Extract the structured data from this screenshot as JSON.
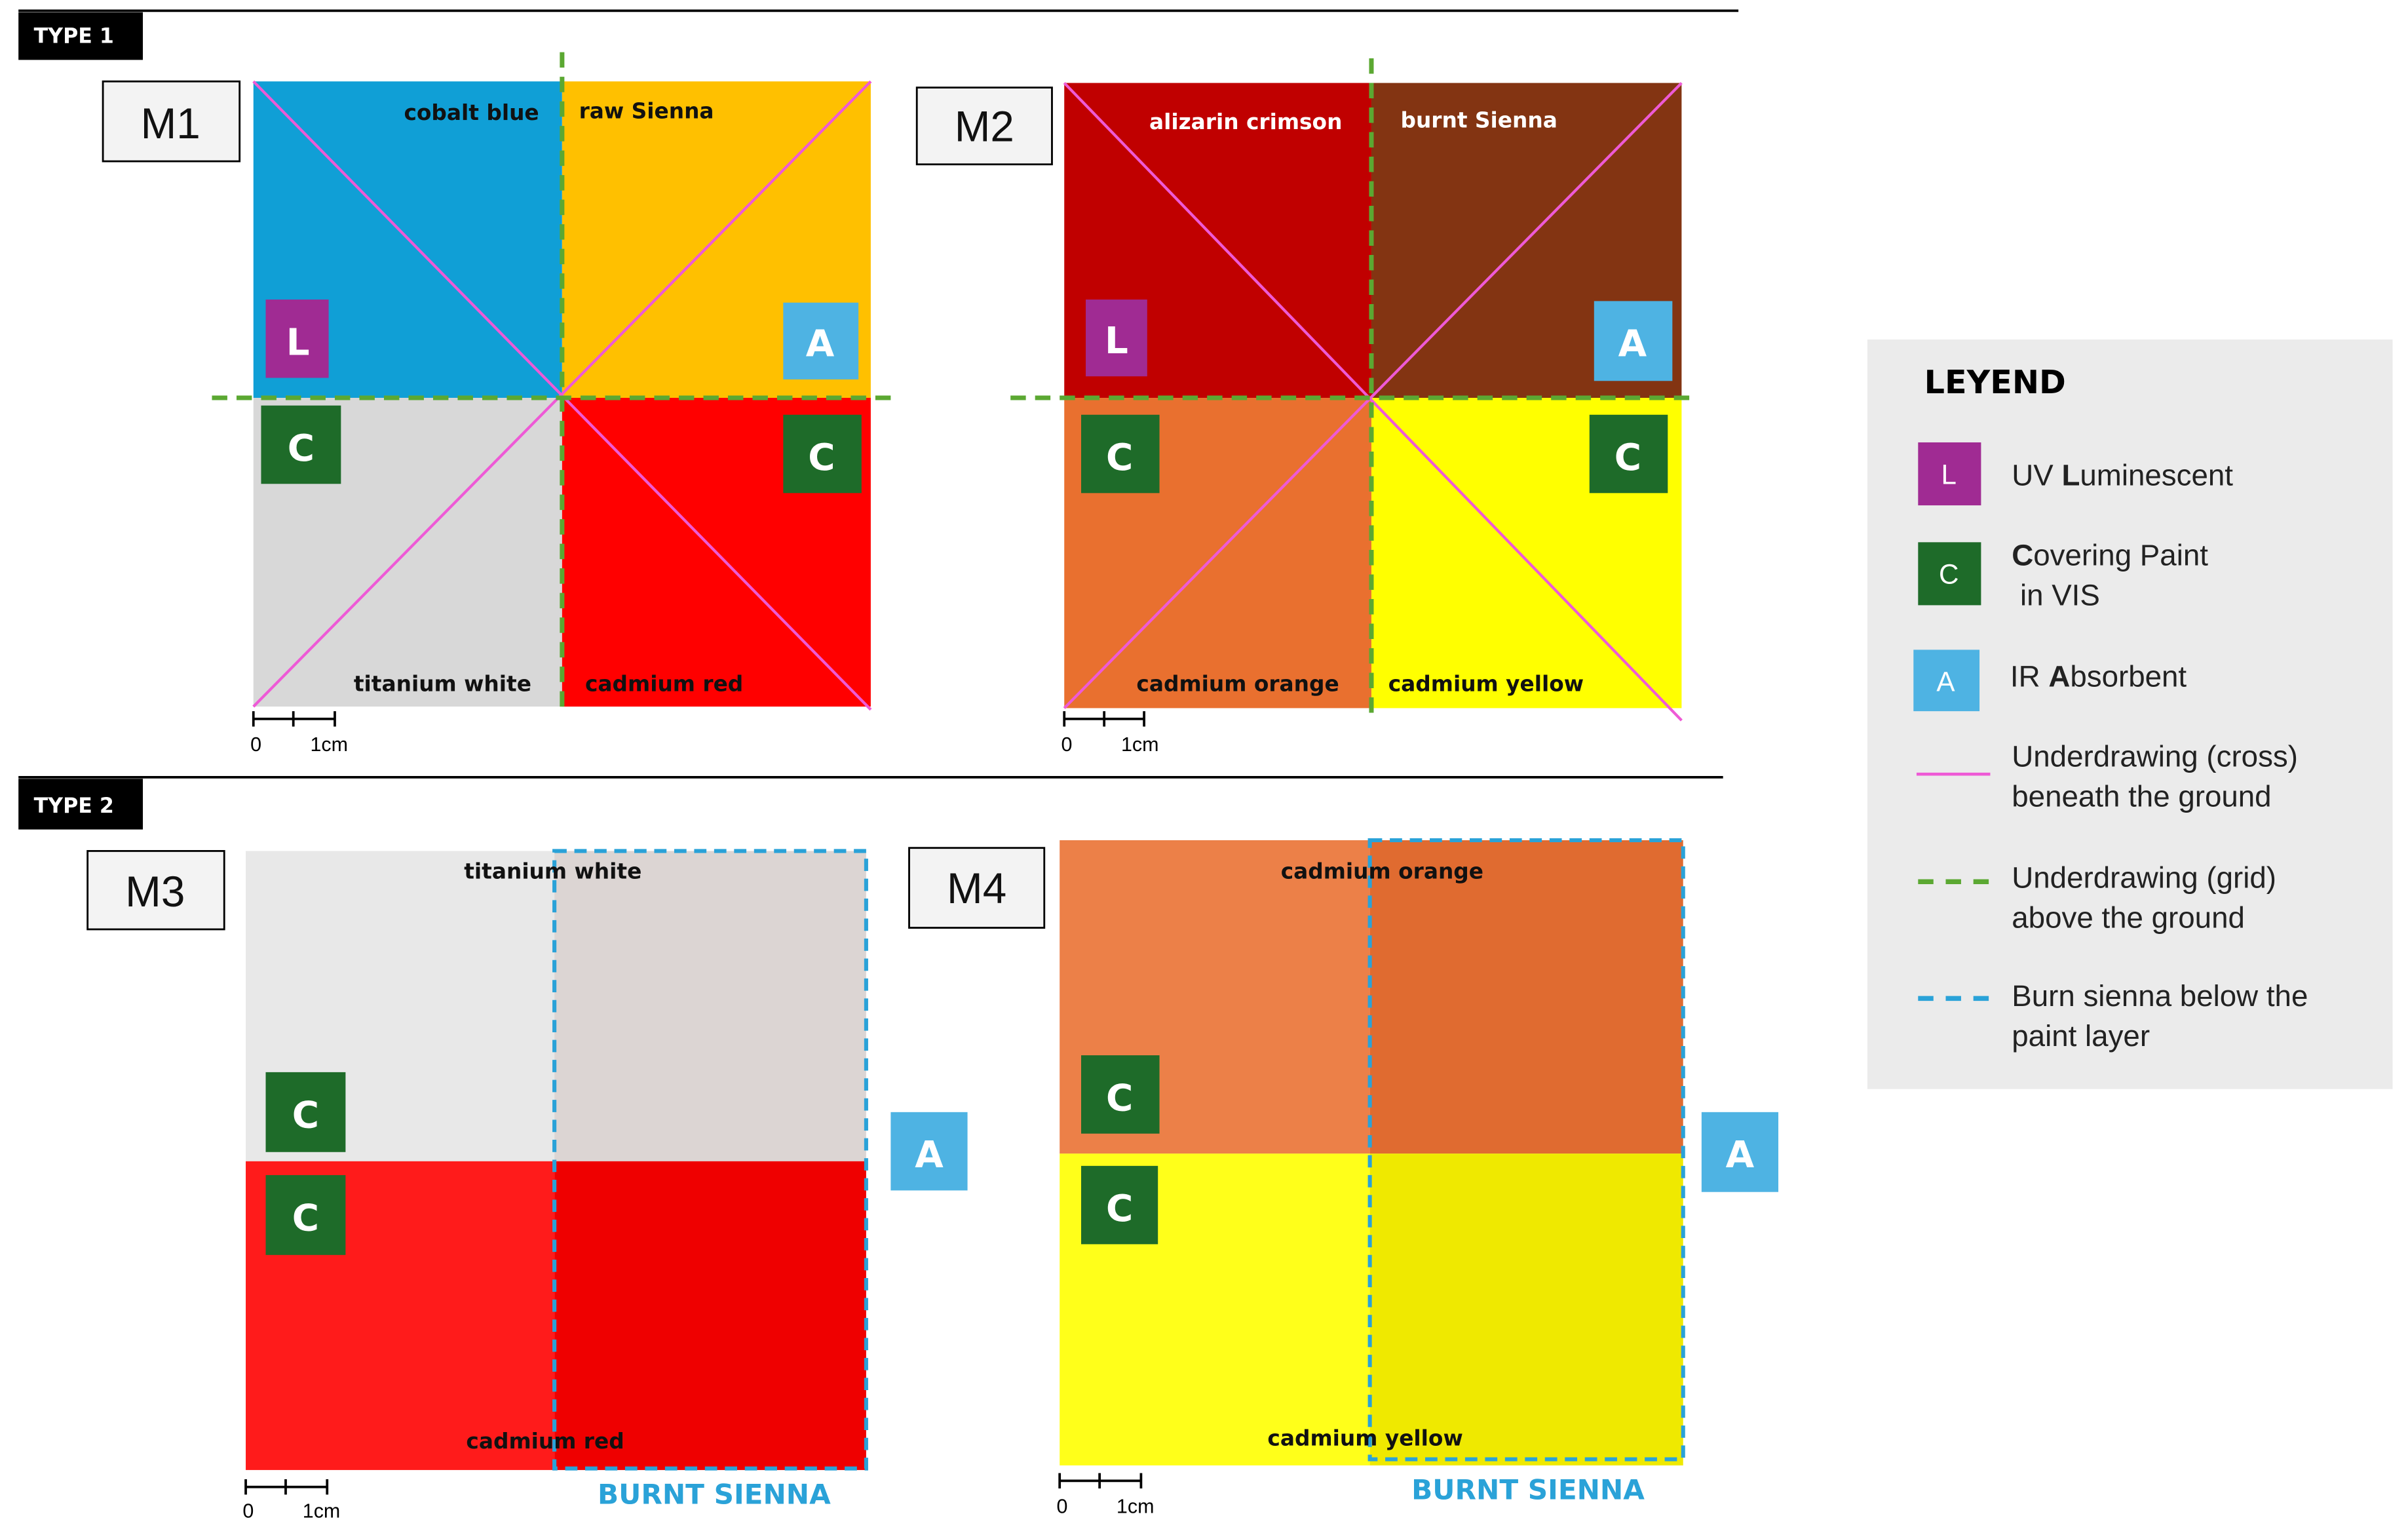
{
  "sections": {
    "type1": "TYPE 1",
    "type2": "TYPE 2"
  },
  "badges": {
    "L": "L",
    "C": "C",
    "A": "A"
  },
  "scale": {
    "zero": "0",
    "one": "1cm"
  },
  "samples": {
    "m1": {
      "title": "M1",
      "q_tl": "cobalt blue",
      "q_tr": "raw Sienna",
      "q_bl": "titanium white",
      "q_br": "cadmium red",
      "colors": {
        "tl": "#109fd6",
        "tr": "#ffc000",
        "bl": "#d8d8d8",
        "br": "#ff0000"
      }
    },
    "m2": {
      "title": "M2",
      "q_tl": "alizarin crimson",
      "q_tr": "burnt Sienna",
      "q_bl": "cadmium orange",
      "q_br": "cadmium yellow",
      "colors": {
        "tl": "#c00000",
        "tr": "#833412",
        "bl": "#e9702f",
        "br": "#ffff00"
      }
    },
    "m3": {
      "title": "M3",
      "top": "titanium white",
      "bottom": "cadmium red",
      "burnt": "BURNT SIENNA",
      "colors": {
        "tl": "#e8e8e8",
        "tr": "#dcd5d3",
        "bl": "#ff1b1b",
        "br": "#ef0000"
      }
    },
    "m4": {
      "title": "M4",
      "top": "cadmium orange",
      "bottom": "cadmium yellow",
      "burnt": "BURNT SIENNA",
      "colors": {
        "tl": "#ec8048",
        "tr": "#e06b30",
        "bl": "#ffff1a",
        "br": "#efe900"
      }
    }
  },
  "legend": {
    "title": "LEYEND",
    "uv": {
      "badge": "L",
      "bold": "L",
      "pre": "UV ",
      "post": "uminescent"
    },
    "cov": {
      "badge": "C",
      "bold": "C",
      "post": "overing Paint",
      "line2": " in VIS"
    },
    "ir": {
      "badge": "A",
      "pre": "IR ",
      "bold": "A",
      "post": "bsorbent"
    },
    "cross": {
      "line1": "Underdrawing (cross)",
      "line2": "beneath the ground"
    },
    "grid": {
      "line1": "Underdrawing (grid)",
      "line2": "above the ground"
    },
    "burn": {
      "line1": "Burn sienna below the",
      "line2": "paint layer"
    }
  },
  "colors": {
    "uv": "#a02b93",
    "covering": "#1e6b29",
    "ir": "#4eb3e3",
    "cross": "#ee5ad6",
    "grid": "#5ba832",
    "burn": "#2aa2d8",
    "legend_bg": "#ebebeb"
  }
}
